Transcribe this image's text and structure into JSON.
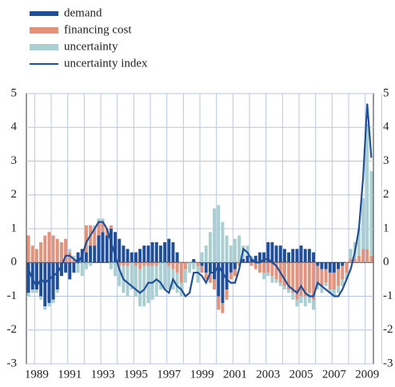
{
  "chart_data": {
    "type": "bar",
    "categories": [
      null,
      null,
      "1989",
      null,
      null,
      null,
      null,
      null,
      null,
      null,
      "1991",
      null,
      null,
      null,
      null,
      null,
      null,
      null,
      "1993",
      null,
      null,
      null,
      null,
      null,
      null,
      null,
      "1995",
      null,
      null,
      null,
      null,
      null,
      null,
      null,
      "1997",
      null,
      null,
      null,
      null,
      null,
      null,
      null,
      "1999",
      null,
      null,
      null,
      null,
      null,
      null,
      null,
      "2001",
      null,
      null,
      null,
      null,
      null,
      null,
      null,
      "2003",
      null,
      null,
      null,
      null,
      null,
      null,
      null,
      "2005",
      null,
      null,
      null,
      null,
      null,
      null,
      null,
      "2007",
      null,
      null,
      null,
      null,
      null,
      null,
      null,
      "2009",
      null
    ],
    "series": [
      {
        "name": "demand",
        "color": "#1f4e9a",
        "type": "bar",
        "values": [
          -0.9,
          -0.8,
          -0.8,
          -1.0,
          -1.3,
          -1.2,
          -1.1,
          -0.8,
          -0.4,
          -0.3,
          -0.5,
          -0.3,
          0.3,
          0.4,
          0.3,
          0.5,
          0.5,
          0.8,
          0.9,
          0.8,
          1.0,
          0.9,
          0.7,
          0.5,
          0.4,
          0.3,
          0.3,
          0.4,
          0.5,
          0.5,
          0.6,
          0.6,
          0.5,
          0.6,
          0.7,
          0.6,
          0.3,
          0,
          0,
          0,
          0.1,
          0,
          -0.1,
          -0.3,
          -0.3,
          -0.5,
          -1.0,
          -1.2,
          -0.8,
          -0.3,
          -0.2,
          0,
          0.1,
          0.2,
          0.1,
          0.2,
          0.3,
          0.3,
          0.6,
          0.6,
          0.5,
          0.5,
          0.4,
          0.3,
          0.4,
          0.4,
          0.5,
          0.4,
          0.4,
          0.3,
          -0.1,
          -0.2,
          -0.2,
          -0.3,
          -0.3,
          -0.2,
          -0.1,
          0,
          0,
          0,
          0,
          0,
          0,
          0
        ]
      },
      {
        "name": "financing cost",
        "color": "#e3927c",
        "type": "bar",
        "values": [
          0.8,
          0.5,
          0.4,
          0.6,
          0.8,
          0.9,
          0.8,
          0.7,
          0.6,
          0.7,
          0.3,
          0.1,
          0,
          0,
          0.8,
          0.6,
          0.5,
          0.4,
          0.3,
          0.2,
          0.1,
          0,
          -0.1,
          -0.1,
          -0.1,
          0,
          -0.1,
          -0.2,
          -0.1,
          -0.1,
          -0.1,
          -0.1,
          0,
          0,
          -0.1,
          -0.2,
          -0.3,
          -0.6,
          -0.2,
          0,
          0,
          -0.1,
          -0.2,
          -0.2,
          -0.3,
          -0.3,
          -0.4,
          -0.3,
          -0.3,
          -0.2,
          -0.2,
          -0.1,
          0,
          0,
          -0.1,
          -0.2,
          -0.3,
          -0.3,
          -0.3,
          -0.4,
          -0.5,
          -0.6,
          -0.7,
          -0.8,
          -0.9,
          -1.1,
          -1.0,
          -1.0,
          -0.9,
          -1.1,
          -0.5,
          -0.5,
          -0.4,
          -0.5,
          -0.5,
          -0.5,
          -0.4,
          -0.3,
          0.1,
          0.1,
          0.2,
          0.4,
          0.4,
          0.2
        ]
      },
      {
        "name": "uncertainty",
        "color": "#a9cfd1",
        "type": "bar",
        "values": [
          -0.1,
          -0.1,
          -0.1,
          -0.1,
          -0.1,
          -0.1,
          -0.1,
          -0.1,
          0,
          0,
          0.1,
          0.1,
          -0.3,
          -0.4,
          -0.2,
          -0.1,
          0.1,
          0.1,
          0.1,
          0,
          -0.2,
          -0.4,
          -0.6,
          -0.8,
          -0.9,
          -0.8,
          -0.9,
          -1.1,
          -1.2,
          -1.1,
          -1.0,
          -0.9,
          -0.8,
          -0.8,
          -0.7,
          -0.6,
          -0.6,
          -0.4,
          -0.4,
          -0.3,
          -0.2,
          -0.5,
          0.3,
          0.5,
          0.9,
          1.6,
          1.7,
          1.2,
          0.8,
          0.5,
          0.7,
          0.8,
          0.4,
          0.3,
          0.1,
          0,
          0,
          -0.2,
          -0.1,
          -0.2,
          -0.1,
          -0.1,
          -0.1,
          -0.1,
          -0.2,
          -0.2,
          -0.2,
          -0.3,
          -0.3,
          -0.3,
          -0.2,
          -0.2,
          -0.1,
          -0.1,
          -0.2,
          -0.2,
          -0.2,
          -0.2,
          0.3,
          0.5,
          0.8,
          1.5,
          3.7,
          2.5
        ]
      },
      {
        "name": "uncertainty index",
        "color": "#1f4e9a",
        "type": "line",
        "values": [
          -0.2,
          -0.5,
          -0.7,
          -0.5,
          -0.6,
          -0.5,
          -0.4,
          -0.3,
          -0.1,
          0.2,
          0.2,
          0.1,
          0,
          0.2,
          0.6,
          0.8,
          1.0,
          1.2,
          1.2,
          1.0,
          0.6,
          0.2,
          -0.2,
          -0.5,
          -0.6,
          -0.7,
          -0.8,
          -0.9,
          -0.8,
          -0.6,
          -0.6,
          -0.5,
          -0.6,
          -0.8,
          -0.9,
          -0.5,
          -0.7,
          -0.8,
          -1.0,
          -0.9,
          -0.3,
          -0.3,
          -0.4,
          -0.6,
          -0.3,
          -0.3,
          -0.1,
          -0.3,
          -0.5,
          -0.6,
          -0.6,
          -0.2,
          0.4,
          0.3,
          0.1,
          0,
          0,
          0.1,
          0.1,
          0,
          -0.1,
          -0.3,
          -0.5,
          -0.7,
          -0.8,
          -0.9,
          -0.7,
          -0.9,
          -1.0,
          -1.0,
          -0.6,
          -0.7,
          -0.8,
          -0.9,
          -1.0,
          -1.0,
          -0.8,
          -0.5,
          -0.2,
          0.3,
          1.0,
          2.5,
          4.7,
          3.1
        ]
      }
    ],
    "ylim": [
      -3,
      5
    ],
    "yticks": [
      -3,
      -2,
      -1,
      0,
      1,
      2,
      3,
      4,
      5
    ],
    "y2lim": [
      -3,
      5
    ],
    "y2ticks": [
      -3,
      -2,
      -1,
      0,
      1,
      2,
      3,
      4,
      5
    ],
    "grid": true,
    "legend": "top-left"
  }
}
